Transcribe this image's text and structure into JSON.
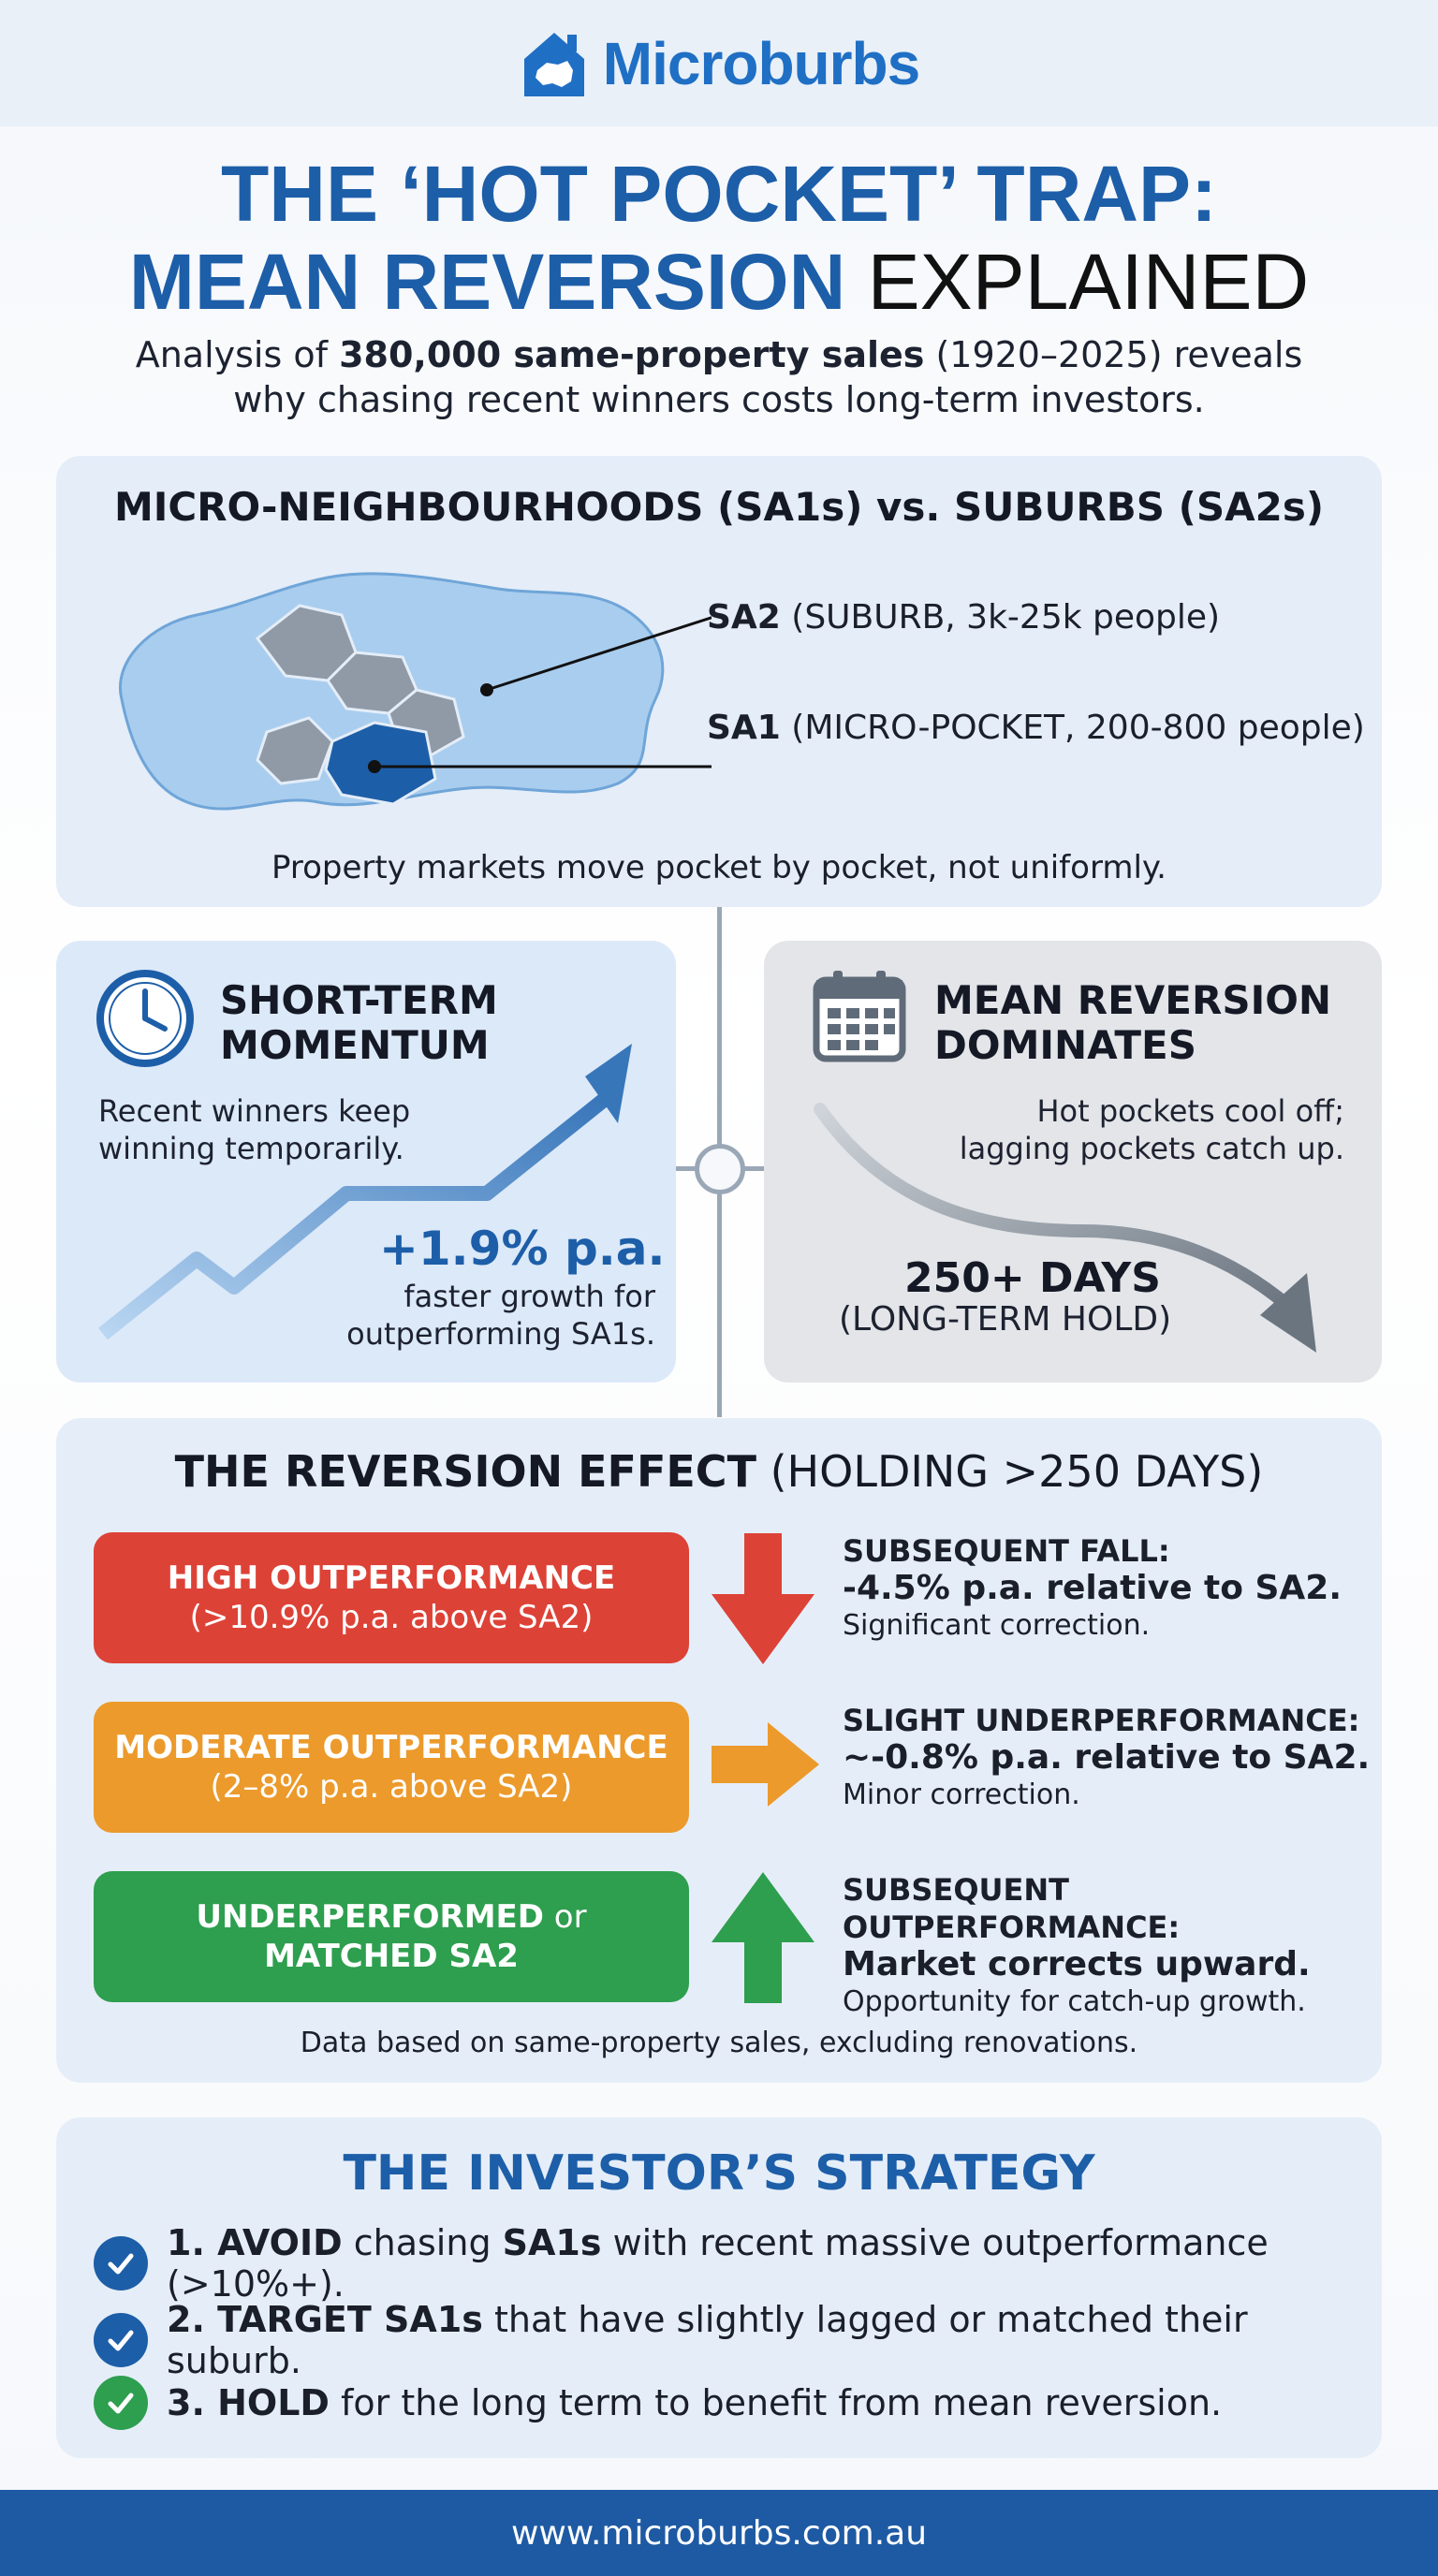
{
  "brand": {
    "name": "Microburbs",
    "logo_icon": "house-australia-icon",
    "color": "#1f6fc4"
  },
  "title": {
    "line1": "THE ‘HOT POCKET’ TRAP:",
    "line2_blue": "MEAN REVERSION",
    "line2_black": "EXPLAINED"
  },
  "subtitle": {
    "pre": "Analysis of ",
    "bold": "380,000 same-property sales",
    "post": " (1920–2025) reveals",
    "line2": "why chasing recent winners costs long-term investors."
  },
  "map_card": {
    "heading": "MICRO-NEIGHBOURHOODS (SA1s) vs. SUBURBS (SA2s)",
    "sa2_bold": "SA2",
    "sa2_rest": " (SUBURB, 3k-25k people)",
    "sa1_bold": "SA1",
    "sa1_rest": " (MICRO-POCKET, 200-800 people)",
    "caption": "Property markets move pocket by pocket, not uniformly."
  },
  "momentum_card": {
    "icon": "clock-icon",
    "title_line1": "SHORT-TERM",
    "title_line2": "MOMENTUM",
    "text_line1": "Recent winners keep",
    "text_line2": "winning temporarily.",
    "stat": "+1.9% p.a.",
    "stat_line1": "faster growth for",
    "stat_line2": "outperforming SA1s."
  },
  "reversion_card": {
    "icon": "calendar-icon",
    "title_line1": "MEAN REVERSION",
    "title_line2": "DOMINATES",
    "text_line1": "Hot pockets cool off;",
    "text_line2": "lagging pockets catch up.",
    "stat": "250+ DAYS",
    "stat_sub": "(LONG-TERM HOLD)"
  },
  "effect_card": {
    "heading_bold": "THE REVERSION EFFECT",
    "heading_rest": " (HOLDING >250 DAYS)",
    "rows": [
      {
        "pill_bold": "HIGH OUTPERFORMANCE",
        "pill_sub": "(>10.9% p.a. above SA2)",
        "arrow": "arrow-down-icon",
        "head": "SUBSEQUENT FALL:",
        "strong": "-4.5% p.a. relative to SA2.",
        "note": "Significant correction."
      },
      {
        "pill_bold": "MODERATE OUTPERFORMANCE",
        "pill_sub": "(2–8% p.a. above SA2)",
        "arrow": "arrow-right-icon",
        "head": "SLIGHT UNDERPERFORMANCE:",
        "strong": "~-0.8% p.a. relative to SA2.",
        "note": "Minor correction."
      },
      {
        "pill_bold": "UNDERPERFORMED",
        "pill_mid": " or",
        "pill_sub": "MATCHED SA2",
        "arrow": "arrow-up-icon",
        "head": "SUBSEQUENT OUTPERFORMANCE:",
        "strong": "Market corrects upward.",
        "note": "Opportunity for catch-up growth."
      }
    ],
    "footnote": "Data based on same-property sales, excluding renovations.",
    "colors": {
      "red": "#dd4237",
      "orange": "#ec9a2b",
      "green": "#2e9e4f"
    }
  },
  "strategy_card": {
    "heading": "THE INVESTOR’S STRATEGY",
    "items": [
      {
        "bold1": "1. AVOID",
        "t1": " chasing ",
        "bold2": "SA1s",
        "t2": " with recent massive outperformance (>10%+).",
        "icon": "check-circle-icon"
      },
      {
        "bold1": "2. TARGET SA1s",
        "t1": " that have slightly lagged or matched their suburb.",
        "icon": "check-circle-icon"
      },
      {
        "bold1": "3. HOLD",
        "t1": " for the long term to benefit from mean reversion.",
        "icon": "check-circle-icon"
      }
    ]
  },
  "footer": {
    "url": "www.microburbs.com.au"
  }
}
